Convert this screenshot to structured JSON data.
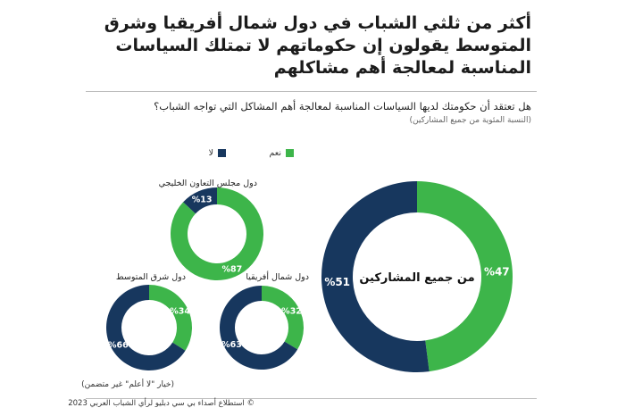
{
  "title": "أكثر من ثلثي الشباب في دول شمال أفريقيا وشرق المتوسط يقولون إن حكوماتهم لا تمتلك السياسات المناسبة لمعالجة أهم مشاكلهم",
  "question": "هل تعتقد أن حكومتك لديها السياسات المناسبة لمعالجة أهم المشاكل التي تواجه الشباب؟",
  "subnote": "(النسبة المئوية من جميع المشاركين)",
  "footnote": "(خيار \"لا أعلم\" غير متضمن)",
  "source": "© استطلاع أصداء بي سي دبليو لرأي الشباب العربي 2023",
  "colors": {
    "yes": "#3db54a",
    "no": "#17375e"
  },
  "chart_data": {
    "type": "pie",
    "legend": [
      "نعم",
      "لا"
    ],
    "legend_placement": "top",
    "charts": [
      {
        "label": "من جميع المشاركين",
        "yes": 47,
        "no": 51,
        "yes_label": "%47",
        "no_label": "%51"
      },
      {
        "label": "دول مجلس التعاون الخليجي",
        "yes": 87,
        "no": 13,
        "yes_label": "%87",
        "no_label": "%13"
      },
      {
        "label": "دول شمال أفريقيا",
        "yes": 32,
        "no": 63,
        "yes_label": "%32",
        "no_label": "%63"
      },
      {
        "label": "دول شرق المتوسط",
        "yes": 34,
        "no": 66,
        "yes_label": "%34",
        "no_label": "%66"
      }
    ]
  }
}
